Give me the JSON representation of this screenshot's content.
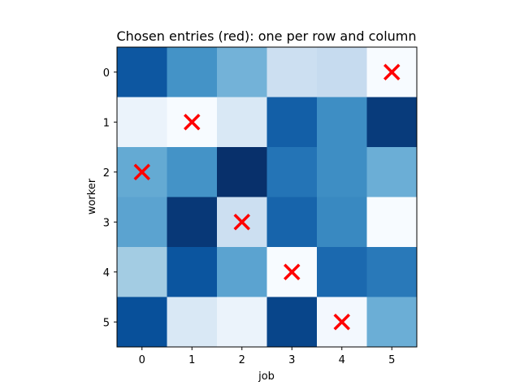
{
  "chart_data": {
    "type": "heatmap",
    "title": "Chosen entries (red): one per row and column",
    "xlabel": "job",
    "ylabel": "worker",
    "x_ticks": [
      "0",
      "1",
      "2",
      "3",
      "4",
      "5"
    ],
    "y_ticks": [
      "0",
      "1",
      "2",
      "3",
      "4",
      "5"
    ],
    "colormap": "Blues",
    "intensity": [
      [
        0.85,
        0.62,
        0.48,
        0.22,
        0.25,
        0.0
      ],
      [
        0.06,
        0.0,
        0.15,
        0.82,
        0.64,
        0.96
      ],
      [
        0.52,
        0.62,
        1.0,
        0.74,
        0.64,
        0.5
      ],
      [
        0.55,
        0.97,
        0.22,
        0.8,
        0.66,
        0.0
      ],
      [
        0.36,
        0.86,
        0.55,
        0.0,
        0.78,
        0.72
      ],
      [
        0.88,
        0.15,
        0.06,
        0.92,
        0.02,
        0.5
      ]
    ],
    "chosen": [
      {
        "worker": 0,
        "job": 5
      },
      {
        "worker": 1,
        "job": 1
      },
      {
        "worker": 2,
        "job": 0
      },
      {
        "worker": 3,
        "job": 2
      },
      {
        "worker": 4,
        "job": 3
      },
      {
        "worker": 5,
        "job": 4
      }
    ],
    "marker": "x",
    "marker_color": "#ff0000",
    "grid": false
  }
}
